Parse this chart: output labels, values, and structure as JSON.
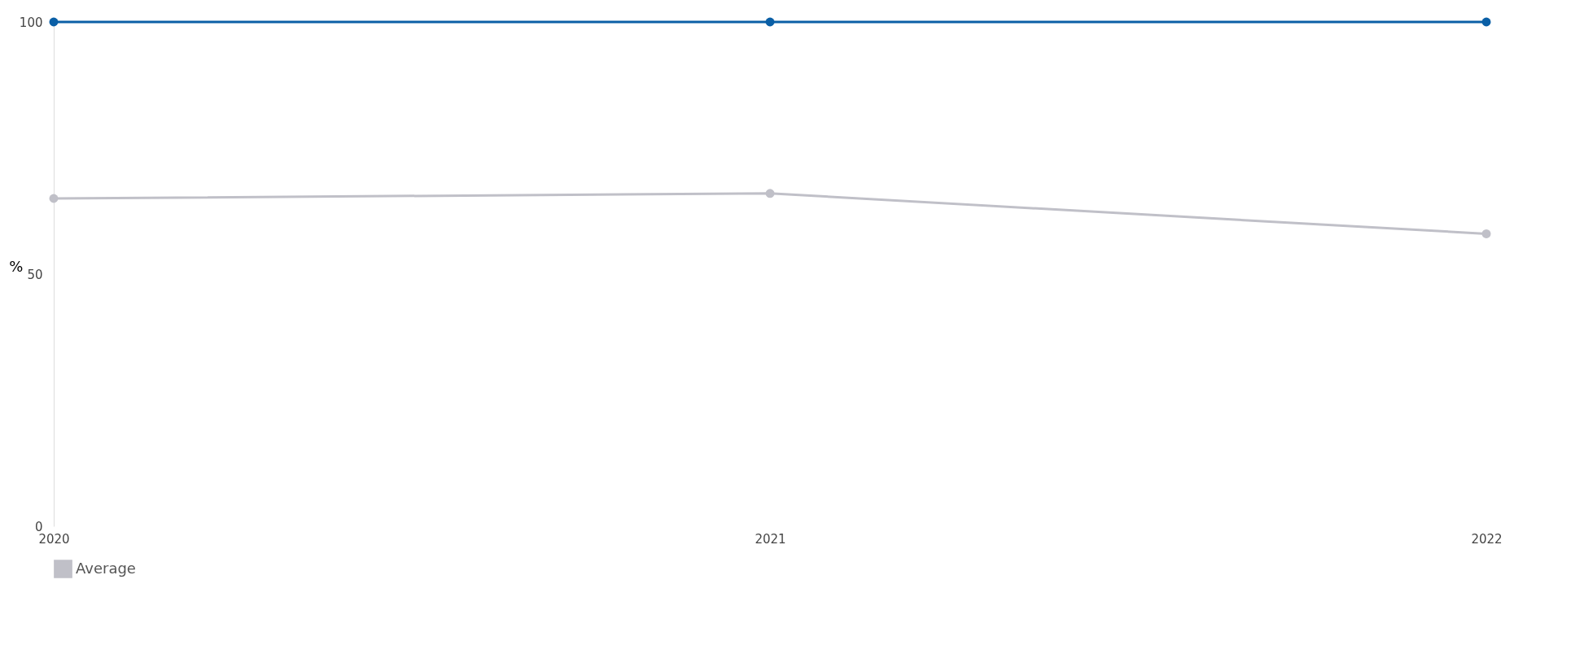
{
  "chart_data": {
    "type": "line",
    "ylabel": "%",
    "categories": [
      "2020",
      "2021",
      "2022"
    ],
    "series": [
      {
        "color": "#0a5fa6",
        "values": [
          100,
          100,
          100
        ]
      },
      {
        "name": "Average",
        "color": "#c0c0c8",
        "values": [
          65,
          66,
          58
        ]
      }
    ],
    "ylim": [
      0,
      100
    ],
    "yticks": [
      0,
      50,
      100
    ],
    "grid": false,
    "legend": "bottom",
    "marker": "circle",
    "line_style": "solid"
  }
}
